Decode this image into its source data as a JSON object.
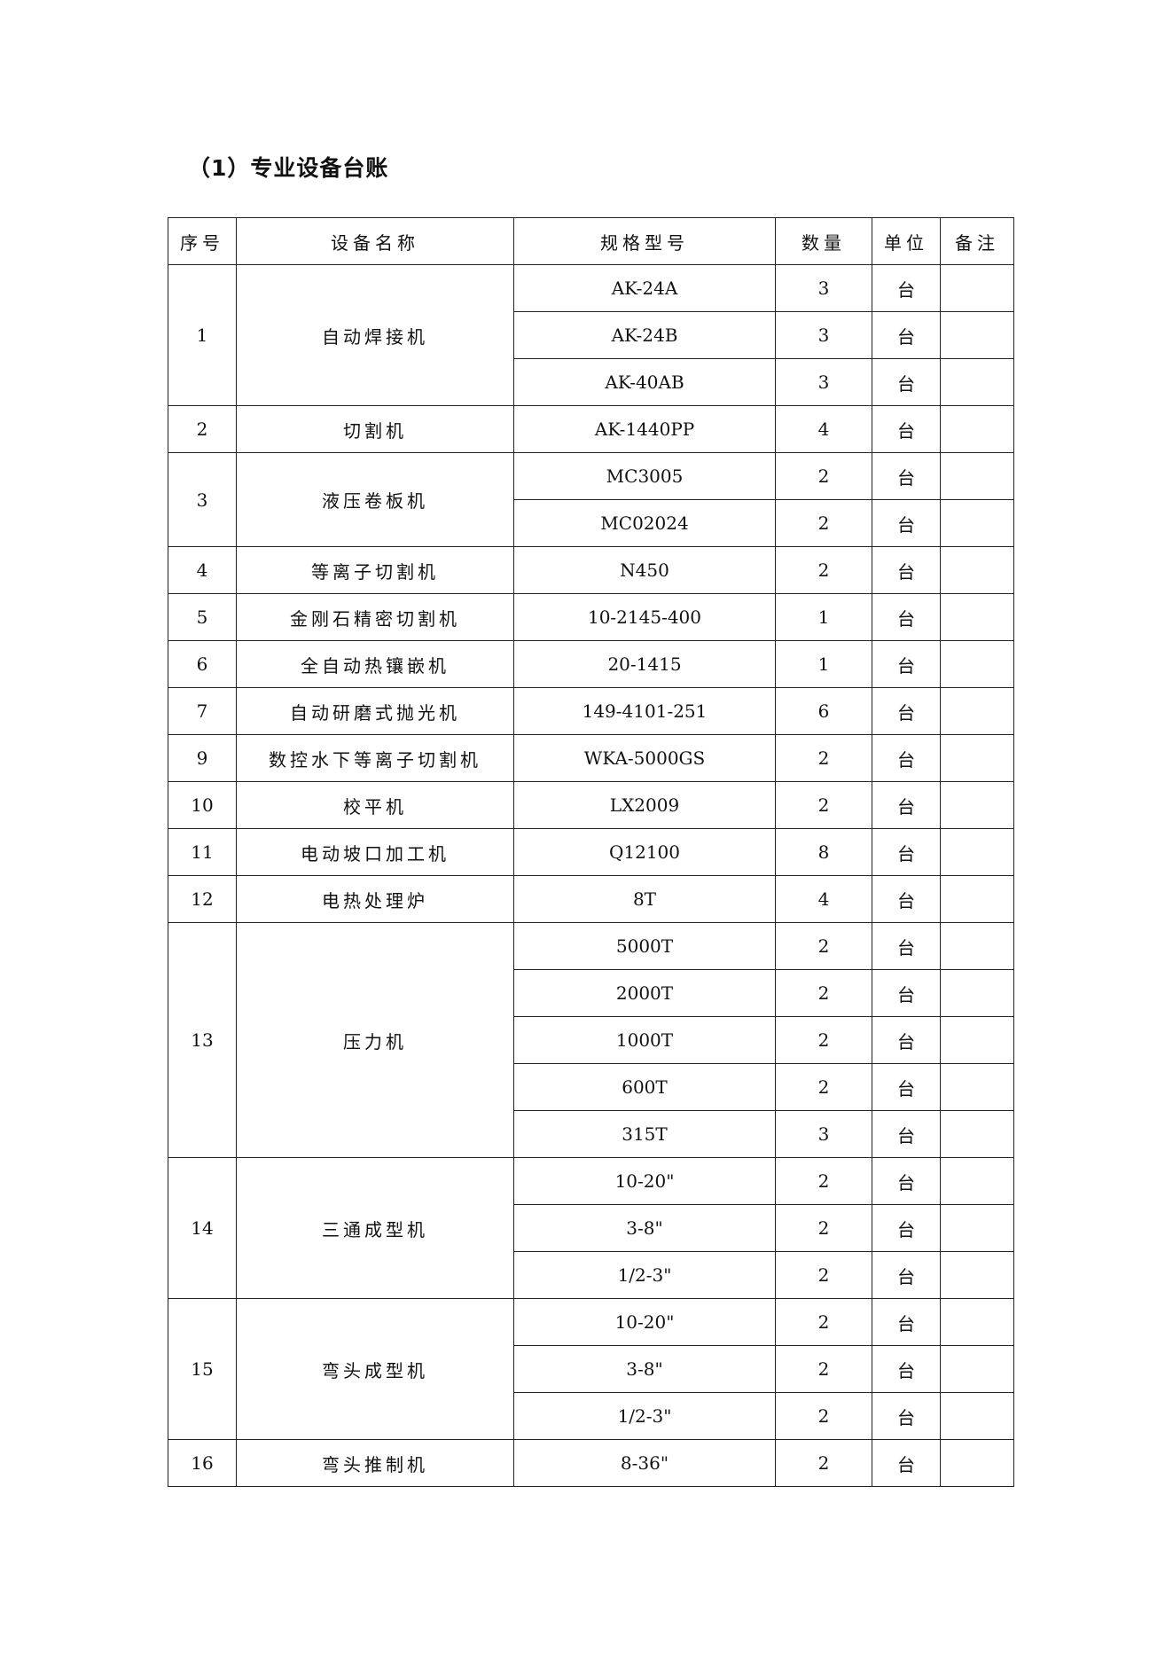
{
  "title": "（1）专业设备台账",
  "table": {
    "headers": [
      "序号",
      "设备名称",
      "规格型号",
      "数量",
      "单位",
      "备注"
    ],
    "groups": [
      {
        "no": "1",
        "name": "自动焊接机",
        "items": [
          {
            "model": "AK-24A",
            "qty": "3",
            "unit": "台"
          },
          {
            "model": "AK-24B",
            "qty": "3",
            "unit": "台"
          },
          {
            "model": "AK-40AB",
            "qty": "3",
            "unit": "台"
          }
        ]
      },
      {
        "no": "2",
        "name": "切割机",
        "items": [
          {
            "model": "AK-1440PP",
            "qty": "4",
            "unit": "台"
          }
        ]
      },
      {
        "no": "3",
        "name": "液压卷板机",
        "items": [
          {
            "model": "MC3005",
            "qty": "2",
            "unit": "台"
          },
          {
            "model": "MC02024",
            "qty": "2",
            "unit": "台"
          }
        ]
      },
      {
        "no": "4",
        "name": "等离子切割机",
        "items": [
          {
            "model": "N450",
            "qty": "2",
            "unit": "台"
          }
        ]
      },
      {
        "no": "5",
        "name": "金刚石精密切割机",
        "items": [
          {
            "model": "10-2145-400",
            "qty": "1",
            "unit": "台"
          }
        ]
      },
      {
        "no": "6",
        "name": "全自动热镶嵌机",
        "items": [
          {
            "model": "20-1415",
            "qty": "1",
            "unit": "台"
          }
        ]
      },
      {
        "no": "7",
        "name": "自动研磨式抛光机",
        "items": [
          {
            "model": "149-4101-251",
            "qty": "6",
            "unit": "台"
          }
        ]
      },
      {
        "no": "9",
        "name": "数控水下等离子切割机",
        "items": [
          {
            "model": "WKA-5000GS",
            "qty": "2",
            "unit": "台"
          }
        ]
      },
      {
        "no": "10",
        "name": "校平机",
        "items": [
          {
            "model": "LX2009",
            "qty": "2",
            "unit": "台"
          }
        ]
      },
      {
        "no": "11",
        "name": "电动坡口加工机",
        "items": [
          {
            "model": "Q12100",
            "qty": "8",
            "unit": "台"
          }
        ]
      },
      {
        "no": "12",
        "name": "电热处理炉",
        "items": [
          {
            "model": "8T",
            "qty": "4",
            "unit": "台"
          }
        ]
      },
      {
        "no": "13",
        "name": "压力机",
        "items": [
          {
            "model": "5000T",
            "qty": "2",
            "unit": "台"
          },
          {
            "model": "2000T",
            "qty": "2",
            "unit": "台"
          },
          {
            "model": "1000T",
            "qty": "2",
            "unit": "台"
          },
          {
            "model": "600T",
            "qty": "2",
            "unit": "台"
          },
          {
            "model": "315T",
            "qty": "3",
            "unit": "台"
          }
        ]
      },
      {
        "no": "14",
        "name": "三通成型机",
        "items": [
          {
            "model": "10-20\"",
            "qty": "2",
            "unit": "台"
          },
          {
            "model": "3-8\"",
            "qty": "2",
            "unit": "台"
          },
          {
            "model": "1/2-3\"",
            "qty": "2",
            "unit": "台"
          }
        ]
      },
      {
        "no": "15",
        "name": "弯头成型机",
        "items": [
          {
            "model": "10-20\"",
            "qty": "2",
            "unit": "台"
          },
          {
            "model": "3-8\"",
            "qty": "2",
            "unit": "台"
          },
          {
            "model": "1/2-3\"",
            "qty": "2",
            "unit": "台"
          }
        ]
      },
      {
        "no": "16",
        "name": "弯头推制机",
        "items": [
          {
            "model": "8-36\"",
            "qty": "2",
            "unit": "台"
          }
        ]
      }
    ]
  }
}
